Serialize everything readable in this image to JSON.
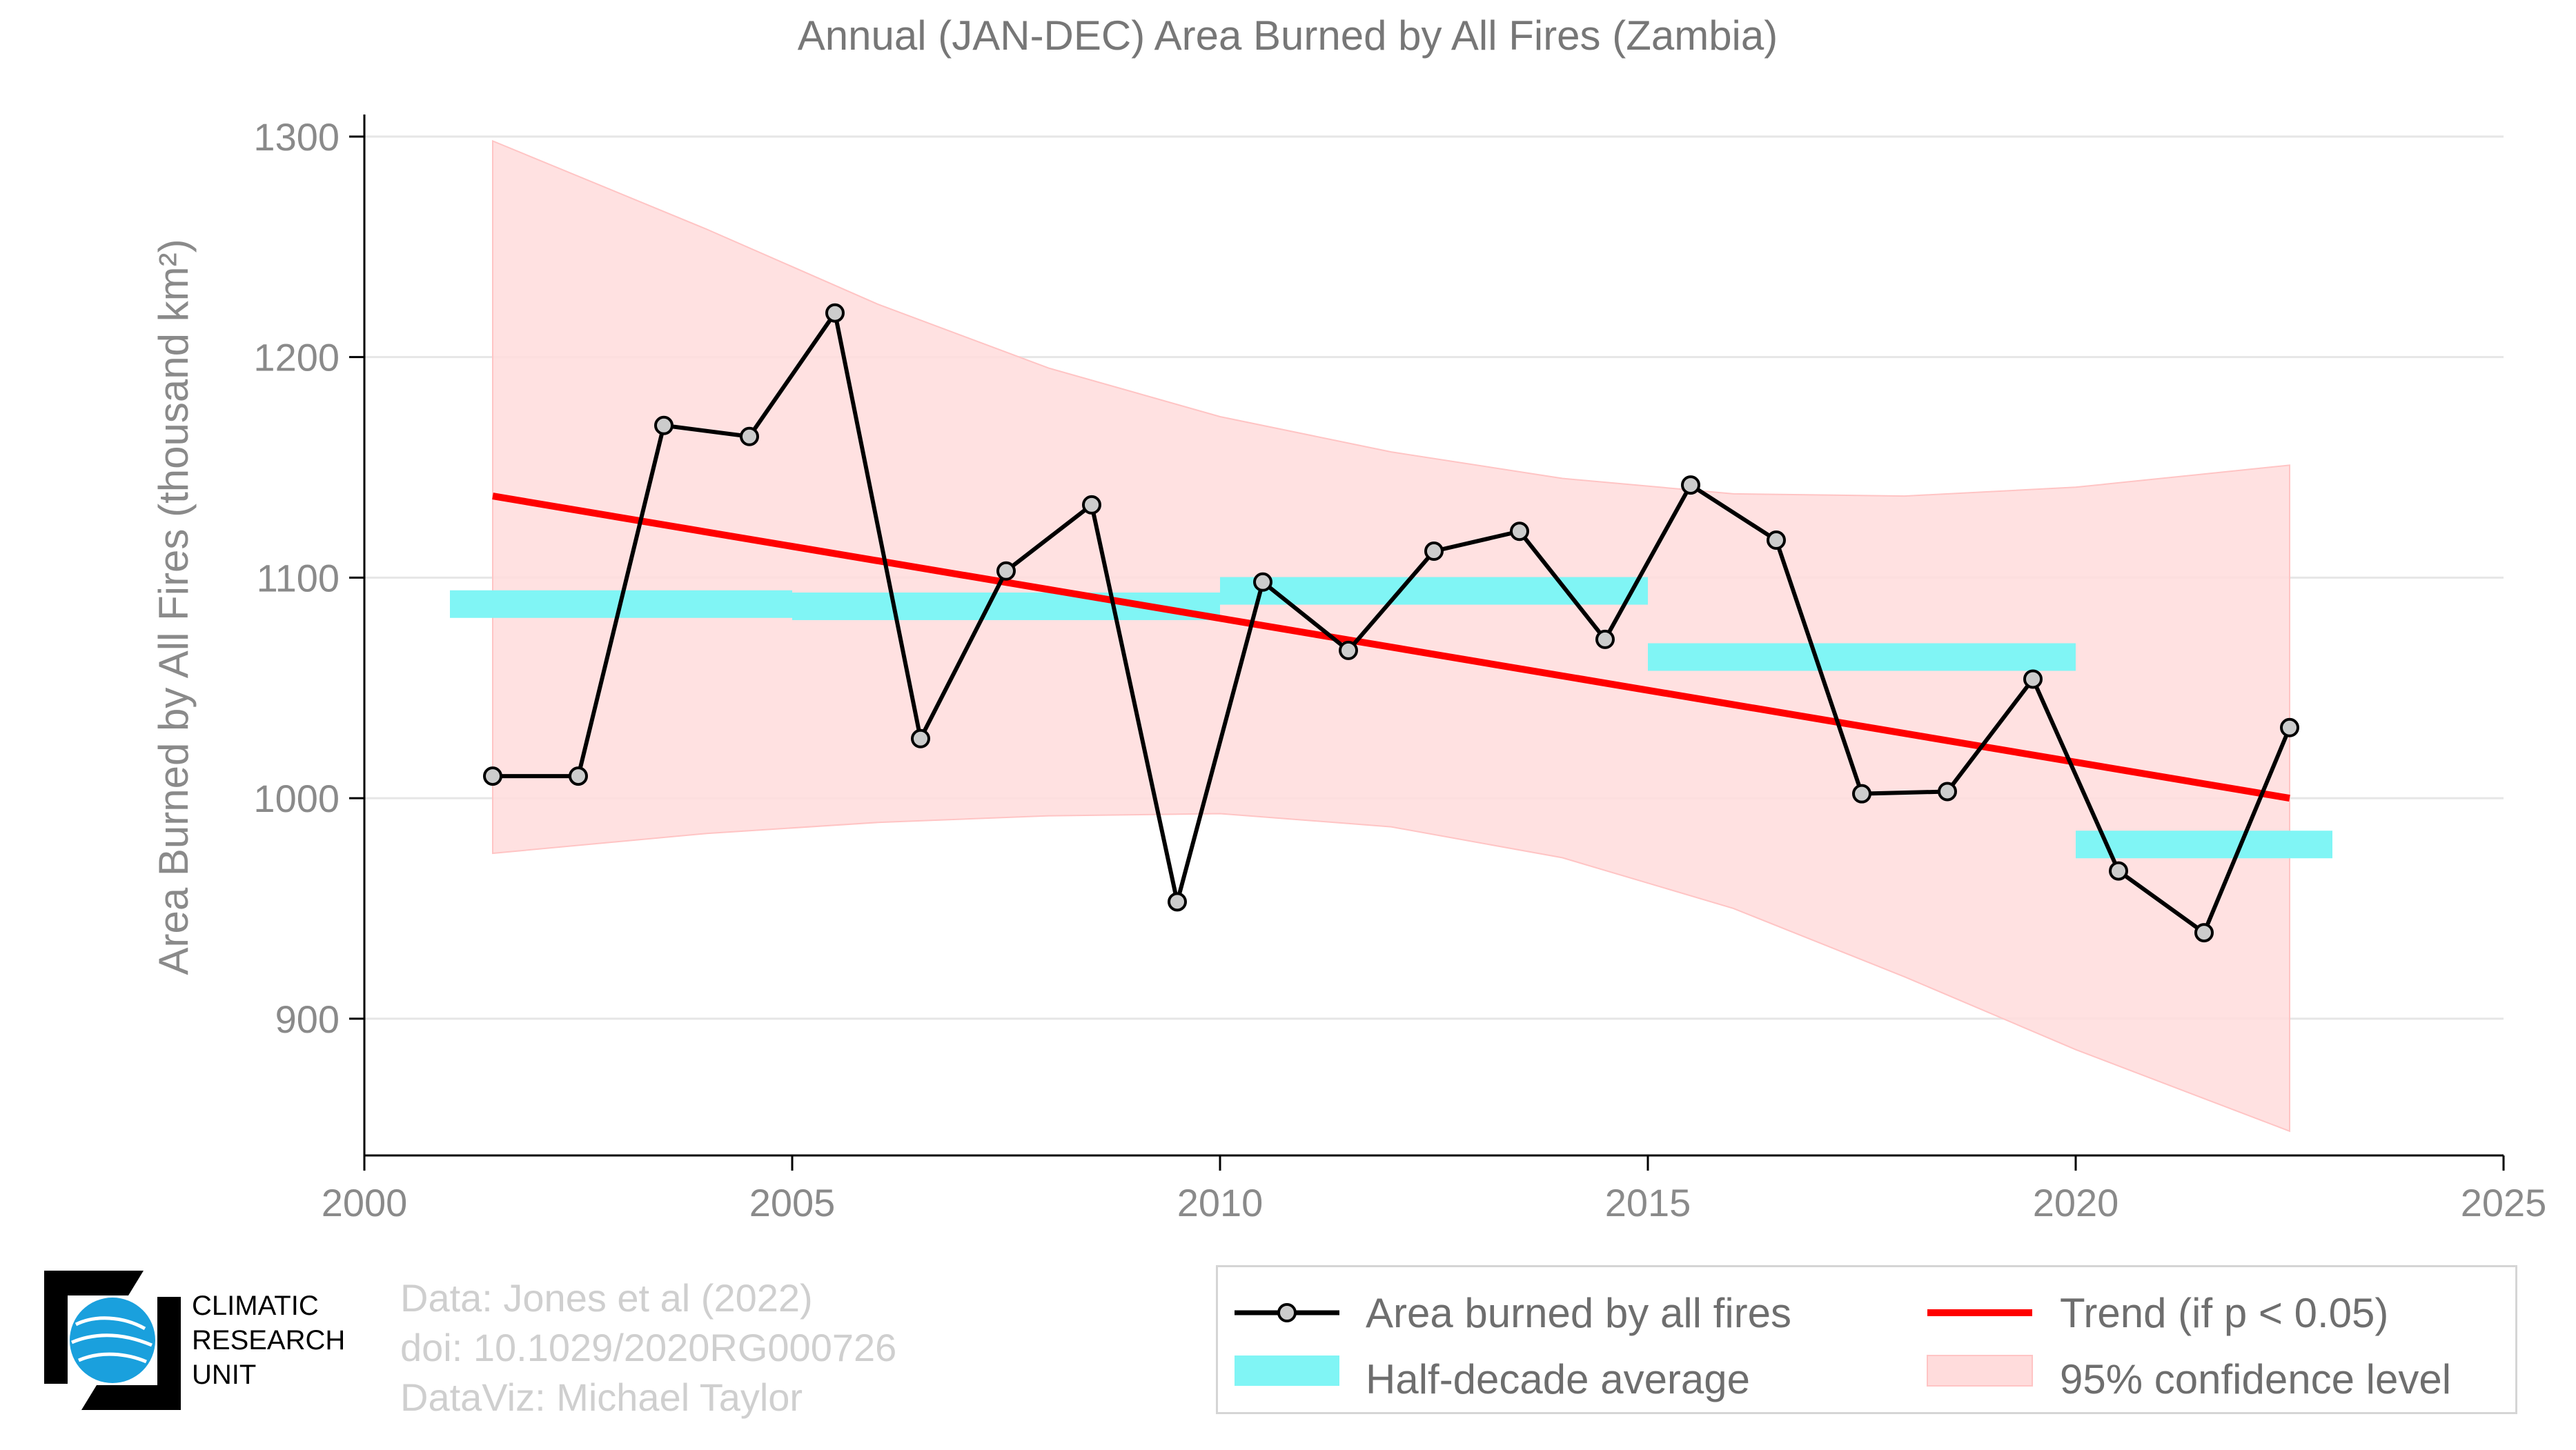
{
  "chart_data": {
    "type": "line",
    "title": "Annual (JAN-DEC) Area Burned by All Fires (Zambia)",
    "ylabel": "Area Burned by All Fires (thousand km²)",
    "xlim": [
      2000,
      2025
    ],
    "ylim": [
      838,
      1310
    ],
    "xticks": [
      2000,
      2005,
      2010,
      2015,
      2020,
      2025
    ],
    "yticks": [
      900,
      1000,
      1100,
      1200,
      1300
    ],
    "grid": "horizontal",
    "series": [
      {
        "name": "Area burned by all fires",
        "color": "#000000",
        "x": [
          2001.5,
          2002.5,
          2003.5,
          2004.5,
          2005.5,
          2006.5,
          2007.5,
          2008.5,
          2009.5,
          2010.5,
          2011.5,
          2012.5,
          2013.5,
          2014.5,
          2015.5,
          2016.5,
          2017.5,
          2018.5,
          2019.5,
          2020.5,
          2021.5,
          2022.5
        ],
        "y": [
          1010,
          1010,
          1169,
          1164,
          1220,
          1027,
          1103,
          1133,
          953,
          1098,
          1067,
          1112,
          1121,
          1072,
          1142,
          1117,
          1002,
          1003,
          1054,
          967,
          939,
          1032
        ]
      }
    ],
    "half_decade_average": {
      "name": "Half-decade average",
      "color": "#80f5f5",
      "segments": [
        {
          "x0": 2001,
          "x1": 2005,
          "y": 1088
        },
        {
          "x0": 2005,
          "x1": 2010,
          "y": 1087
        },
        {
          "x0": 2010,
          "x1": 2015,
          "y": 1094
        },
        {
          "x0": 2015,
          "x1": 2020,
          "y": 1064
        },
        {
          "x0": 2020,
          "x1": 2023,
          "y": 979
        }
      ]
    },
    "trend": {
      "name": "Trend (if p < 0.05)",
      "color": "#ff0000",
      "x": [
        2001.5,
        2022.5
      ],
      "y": [
        1137,
        1000
      ]
    },
    "confidence_band": {
      "name": "95% confidence level",
      "color": "#ffdcdc",
      "x": [
        2001.5,
        2004.0,
        2006.0,
        2008.0,
        2010.0,
        2012.0,
        2014.0,
        2016.0,
        2018.0,
        2020.0,
        2022.5
      ],
      "upper": [
        1298,
        1258,
        1224,
        1195,
        1173,
        1157,
        1145,
        1138,
        1137,
        1141,
        1151
      ],
      "lower": [
        975,
        984,
        989,
        992,
        993,
        987,
        973,
        950,
        919,
        886,
        849
      ]
    },
    "legend": {
      "placement": "bottom-right",
      "entries": [
        "Area burned by all fires",
        "Trend (if p < 0.05)",
        "Half-decade average",
        "95% confidence level"
      ]
    }
  },
  "credits": {
    "line1": "Data: Jones et al (2022)",
    "line2": "doi: 10.1029/2020RG000726",
    "line3": "DataViz: Michael Taylor"
  },
  "logo": {
    "line1": "CLIMATIC",
    "line2": "RESEARCH",
    "line3": "UNIT"
  }
}
